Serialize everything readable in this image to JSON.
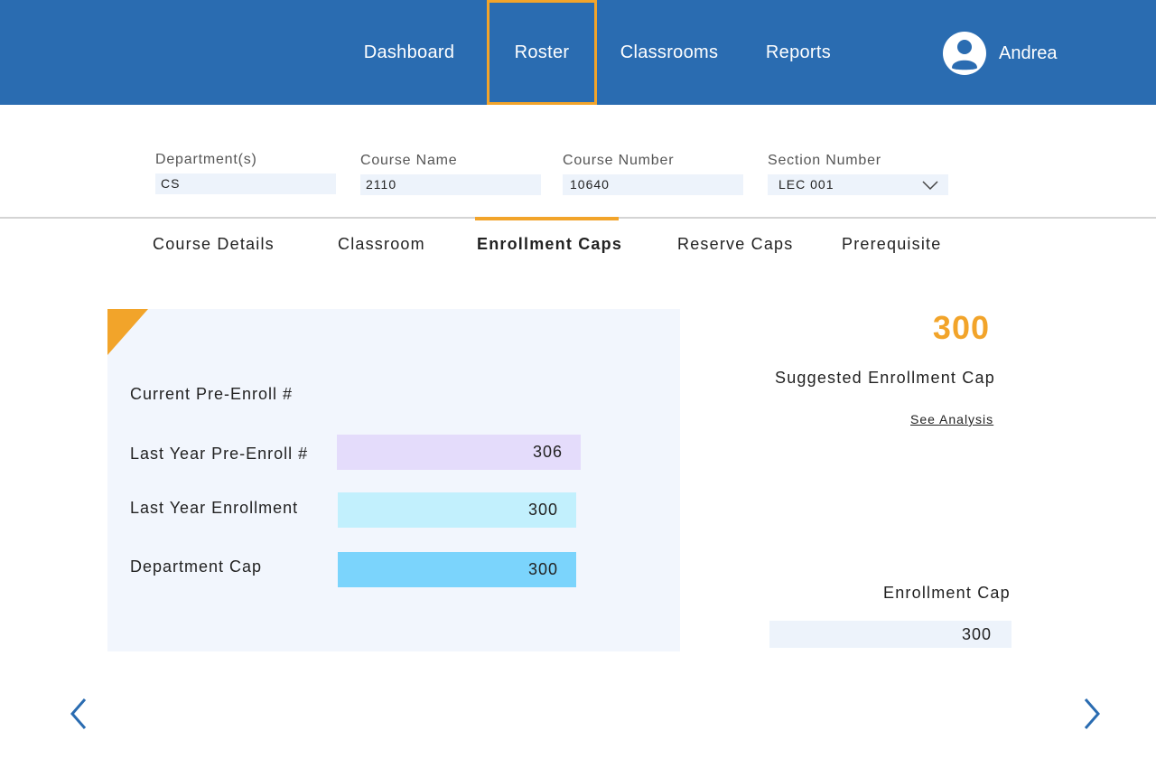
{
  "nav": {
    "items": [
      "Dashboard",
      "Roster",
      "Classrooms",
      "Reports"
    ],
    "active": "Roster",
    "accent_color": "#f2a42a",
    "bar_color": "#2a6cb1"
  },
  "user": {
    "name": "Andrea",
    "icon": "user-avatar-icon"
  },
  "filters": {
    "department": {
      "label": "Department(s)",
      "value": "CS"
    },
    "course_name": {
      "label": "Course Name",
      "value": "2110"
    },
    "course_number": {
      "label": "Course Number",
      "value": "10640"
    },
    "section_number": {
      "label": "Section Number",
      "value": "LEC 001",
      "icon": "chevron-down-icon"
    }
  },
  "tabs": [
    {
      "label": "Course Details"
    },
    {
      "label": "Classroom"
    },
    {
      "label": "Enrollment Caps"
    },
    {
      "label": "Reserve Caps"
    },
    {
      "label": "Prerequisite"
    }
  ],
  "active_tab": "Enrollment Caps",
  "enrollment": {
    "current_pre_enroll_label": "Current Pre-Enroll #",
    "rows": [
      {
        "label": "Last Year Pre-Enroll #",
        "value": "306",
        "color": "#e4dcfb"
      },
      {
        "label": "Last Year Enrollment",
        "value": "300",
        "color": "#c2f0fd"
      },
      {
        "label": "Department Cap",
        "value": "300",
        "color": "#7bd4fc"
      }
    ]
  },
  "suggestion": {
    "value": "300",
    "label": "Suggested Enrollment Cap",
    "link": "See Analysis"
  },
  "enrollment_cap": {
    "label": "Enrollment Cap",
    "value": "300"
  },
  "pager": {
    "prev_icon": "chevron-left-icon",
    "next_icon": "chevron-right-icon"
  }
}
